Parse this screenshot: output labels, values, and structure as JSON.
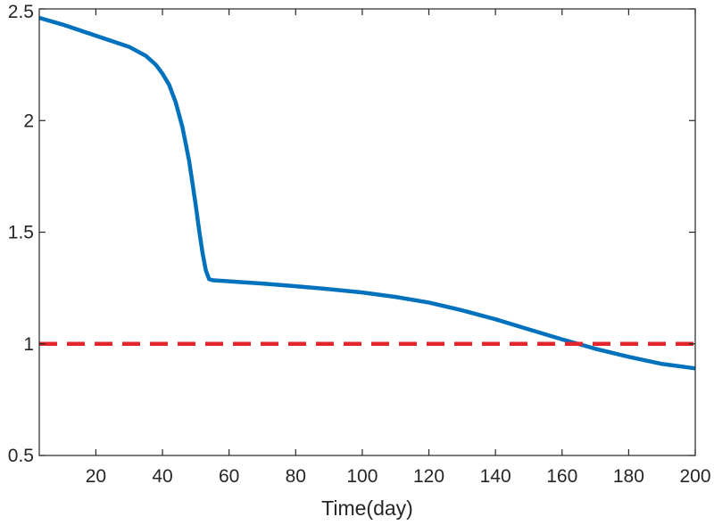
{
  "chart_data": {
    "type": "line",
    "title": "",
    "xlabel": "Time(day)",
    "ylabel": "",
    "xlim": [
      3,
      200
    ],
    "ylim": [
      0.5,
      2.5
    ],
    "xticks": [
      20,
      40,
      60,
      80,
      100,
      120,
      140,
      160,
      180,
      200
    ],
    "yticks": [
      0.5,
      1,
      1.5,
      2,
      2.5
    ],
    "xtick_labels": [
      "20",
      "40",
      "60",
      "80",
      "100",
      "120",
      "140",
      "160",
      "180",
      "200"
    ],
    "ytick_labels": [
      "0.5",
      "1",
      "1.5",
      "2",
      "2.5"
    ],
    "grid": false,
    "series": [
      {
        "color": "#0072BD",
        "style": "solid",
        "x": [
          3,
          10,
          20,
          30,
          35,
          38,
          40,
          42,
          44,
          46,
          48,
          50,
          51,
          52,
          53,
          53.5,
          54,
          55,
          60,
          70,
          80,
          90,
          100,
          110,
          120,
          130,
          140,
          150,
          160,
          170,
          180,
          190,
          200
        ],
        "y": [
          2.46,
          2.43,
          2.38,
          2.33,
          2.29,
          2.25,
          2.21,
          2.16,
          2.08,
          1.97,
          1.82,
          1.62,
          1.51,
          1.41,
          1.33,
          1.31,
          1.29,
          1.285,
          1.28,
          1.27,
          1.258,
          1.245,
          1.23,
          1.21,
          1.185,
          1.15,
          1.11,
          1.065,
          1.02,
          0.978,
          0.942,
          0.91,
          0.89
        ]
      },
      {
        "color": "#E3262B",
        "style": "dashed",
        "x": [
          3,
          200
        ],
        "y": [
          1,
          1
        ]
      }
    ]
  }
}
